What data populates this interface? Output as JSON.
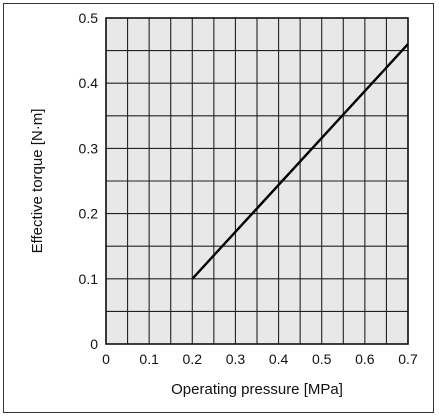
{
  "chart_data": {
    "type": "line",
    "title": "",
    "xlabel": "Operating pressure [MPa]",
    "ylabel": "Effective torque [N·m]",
    "xlim": [
      0,
      0.7
    ],
    "ylim": [
      0,
      0.5
    ],
    "x_ticks": [
      "0",
      "0.1",
      "0.2",
      "0.3",
      "0.4",
      "0.5",
      "0.6",
      "0.7"
    ],
    "y_ticks": [
      "0",
      "0.1",
      "0.2",
      "0.3",
      "0.4",
      "0.5"
    ],
    "grid": true,
    "plot_background": "#e8e8e8",
    "series": [
      {
        "x": [
          0.2,
          0.7
        ],
        "y": [
          0.1,
          0.46
        ]
      }
    ]
  }
}
